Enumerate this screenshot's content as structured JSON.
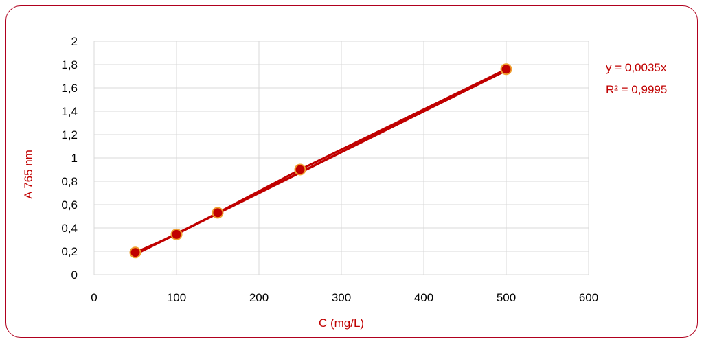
{
  "chart_data": {
    "type": "scatter",
    "xlabel": "C (mg/L)",
    "ylabel": "A 765 nm",
    "xlim": [
      0,
      600
    ],
    "ylim": [
      0,
      2
    ],
    "x_ticks": [
      "0",
      "100",
      "200",
      "300",
      "400",
      "500",
      "600"
    ],
    "y_ticks": [
      "0",
      "0,2",
      "0,4",
      "0,6",
      "0,8",
      "1",
      "1,2",
      "1,4",
      "1,6",
      "1,8",
      "2"
    ],
    "grid": true,
    "series": [
      {
        "x": [
          50,
          100,
          150,
          250,
          500
        ],
        "y": [
          0.19,
          0.345,
          0.53,
          0.9,
          1.76
        ],
        "color": "#c00000",
        "marker_edge": "#f0a030"
      }
    ],
    "trendline": {
      "slope": 0.0035,
      "color": "#c00000",
      "equation": "y = 0,0035x",
      "r_squared": "R² = 0,9995"
    }
  }
}
